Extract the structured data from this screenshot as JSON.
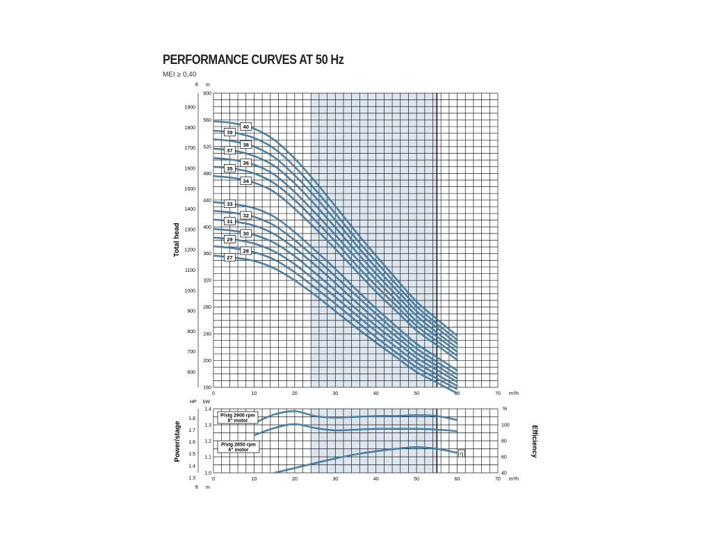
{
  "title": "PERFORMANCE CURVES AT 50 Hz",
  "subtitle": "MEI ≥ 0,40",
  "colors": {
    "curve": "#1d5c86",
    "curve_light": "#8fb2cf",
    "shade": "#dde6ef",
    "grid": "#1a1a1a"
  },
  "chart_data": [
    {
      "type": "line",
      "name": "head",
      "ylabel": "Total head",
      "ylabel_ft": "ft",
      "ylabel_m": "m",
      "xunit": "m³/h",
      "xlim": [
        0,
        70
      ],
      "ylim": [
        160,
        600
      ],
      "x_ticks": [
        "0",
        "10",
        "20",
        "30",
        "40",
        "50",
        "60",
        "70"
      ],
      "m_ticks": [
        "160",
        "200",
        "240",
        "280",
        "320",
        "360",
        "400",
        "440",
        "480",
        "520",
        "560",
        "600"
      ],
      "ft_ticks": [
        "600",
        "700",
        "800",
        "900",
        "1000",
        "1100",
        "1200",
        "1300",
        "1400",
        "1500",
        "1600",
        "1700",
        "1800",
        "1900"
      ],
      "ft_values": [
        600,
        700,
        800,
        900,
        1000,
        1100,
        1200,
        1300,
        1400,
        1500,
        1600,
        1700,
        1800,
        1900
      ],
      "shaded_range": [
        24,
        55
      ],
      "series_x": [
        0,
        5,
        10,
        15,
        20,
        25,
        30,
        35,
        40,
        45,
        50,
        55,
        60
      ],
      "series": [
        {
          "name": "40",
          "values": [
            558,
            555,
            547,
            530,
            502,
            468,
            431,
            393,
            357,
            322,
            288,
            262,
            237
          ]
        },
        {
          "name": "39",
          "values": [
            544,
            541,
            533,
            517,
            490,
            456,
            420,
            383,
            348,
            314,
            281,
            255,
            231
          ]
        },
        {
          "name": "38",
          "values": [
            531,
            528,
            520,
            504,
            477,
            445,
            410,
            374,
            339,
            306,
            274,
            249,
            225
          ]
        },
        {
          "name": "37",
          "values": [
            517,
            514,
            506,
            491,
            465,
            433,
            399,
            364,
            330,
            298,
            267,
            242,
            219
          ]
        },
        {
          "name": "36",
          "values": [
            503,
            500,
            493,
            478,
            452,
            421,
            388,
            354,
            321,
            290,
            259,
            236,
            213
          ]
        },
        {
          "name": "35",
          "values": [
            490,
            487,
            480,
            465,
            440,
            410,
            378,
            344,
            312,
            282,
            252,
            229,
            207
          ]
        },
        {
          "name": "34",
          "values": [
            476,
            473,
            466,
            452,
            427,
            398,
            367,
            335,
            303,
            274,
            245,
            223,
            201
          ]
        },
        {
          "name": "33",
          "values": [
            437,
            434,
            428,
            415,
            392,
            365,
            337,
            307,
            278,
            251,
            225,
            205,
            185
          ]
        },
        {
          "name": "32",
          "values": [
            424,
            421,
            415,
            402,
            380,
            354,
            326,
            298,
            270,
            243,
            218,
            198,
            179
          ]
        },
        {
          "name": "31",
          "values": [
            411,
            408,
            402,
            389,
            368,
            343,
            316,
            288,
            261,
            236,
            211,
            192,
            173
          ]
        },
        {
          "name": "30",
          "values": [
            397,
            394,
            388,
            376,
            356,
            331,
            305,
            278,
            252,
            228,
            204,
            186,
            168
          ]
        },
        {
          "name": "29",
          "values": [
            384,
            381,
            375,
            363,
            344,
            320,
            295,
            269,
            244,
            220,
            197,
            179,
            162
          ]
        },
        {
          "name": "28",
          "values": [
            371,
            368,
            362,
            351,
            332,
            309,
            285,
            260,
            235,
            212,
            190,
            173,
            157
          ]
        },
        {
          "name": "27",
          "values": [
            357,
            354,
            349,
            338,
            320,
            298,
            274,
            250,
            227,
            205,
            183,
            167,
            151
          ]
        }
      ],
      "label_positions": [
        {
          "name": "40",
          "x": 8
        },
        {
          "name": "39",
          "x": 4
        },
        {
          "name": "38",
          "x": 8
        },
        {
          "name": "37",
          "x": 4
        },
        {
          "name": "36",
          "x": 8
        },
        {
          "name": "35",
          "x": 4
        },
        {
          "name": "34",
          "x": 8
        },
        {
          "name": "33",
          "x": 4
        },
        {
          "name": "32",
          "x": 8
        },
        {
          "name": "31",
          "x": 4
        },
        {
          "name": "30",
          "x": 8
        },
        {
          "name": "29",
          "x": 4
        },
        {
          "name": "28",
          "x": 8
        },
        {
          "name": "27",
          "x": 4
        }
      ]
    },
    {
      "type": "line",
      "name": "power-efficiency",
      "ylabel": "Power/stage",
      "ylabel_right": "Efficiency",
      "ylabel_hp": "HP",
      "ylabel_kw": "kW",
      "xunit": "m³/h",
      "xlim": [
        0,
        70
      ],
      "kw_lim": [
        1.0,
        1.4
      ],
      "x_ticks": [
        "0",
        "10",
        "20",
        "30",
        "40",
        "50",
        "60",
        "70"
      ],
      "kw_ticks": [
        "1.0",
        "1.1",
        "1.2",
        "1.3",
        "1.4"
      ],
      "hp_ticks": [
        "1.3",
        "1.4",
        "1.5",
        "1.6",
        "1.7",
        "1.8"
      ],
      "hp_values": [
        1.3,
        1.4,
        1.5,
        1.6,
        1.7,
        1.8
      ],
      "eff_lim": [
        40,
        120
      ],
      "eff_ticks": [
        "40",
        "60",
        "80",
        "100",
        "%"
      ],
      "bottom_ft": "ft",
      "bottom_m": "m",
      "annotations": [
        {
          "line1": "P/stg 2900 rpm",
          "line2": "8\" motor"
        },
        {
          "line1": "P/stg 2850 rpm",
          "line2": "6\" motor"
        }
      ],
      "marker": "η",
      "power_x": [
        10,
        15,
        20,
        25,
        30,
        35,
        40,
        45,
        50,
        55,
        60
      ],
      "power_8in": [
        1.31,
        1.365,
        1.385,
        1.355,
        1.345,
        1.35,
        1.355,
        1.355,
        1.36,
        1.355,
        1.33
      ],
      "power_6in": [
        1.235,
        1.28,
        1.305,
        1.28,
        1.265,
        1.27,
        1.275,
        1.275,
        1.275,
        1.27,
        1.26
      ],
      "eff_x": [
        15,
        20,
        25,
        30,
        35,
        40,
        45,
        50,
        55,
        60
      ],
      "efficiency": [
        40,
        46,
        52,
        58,
        63,
        67,
        70,
        72,
        70,
        65
      ]
    }
  ]
}
